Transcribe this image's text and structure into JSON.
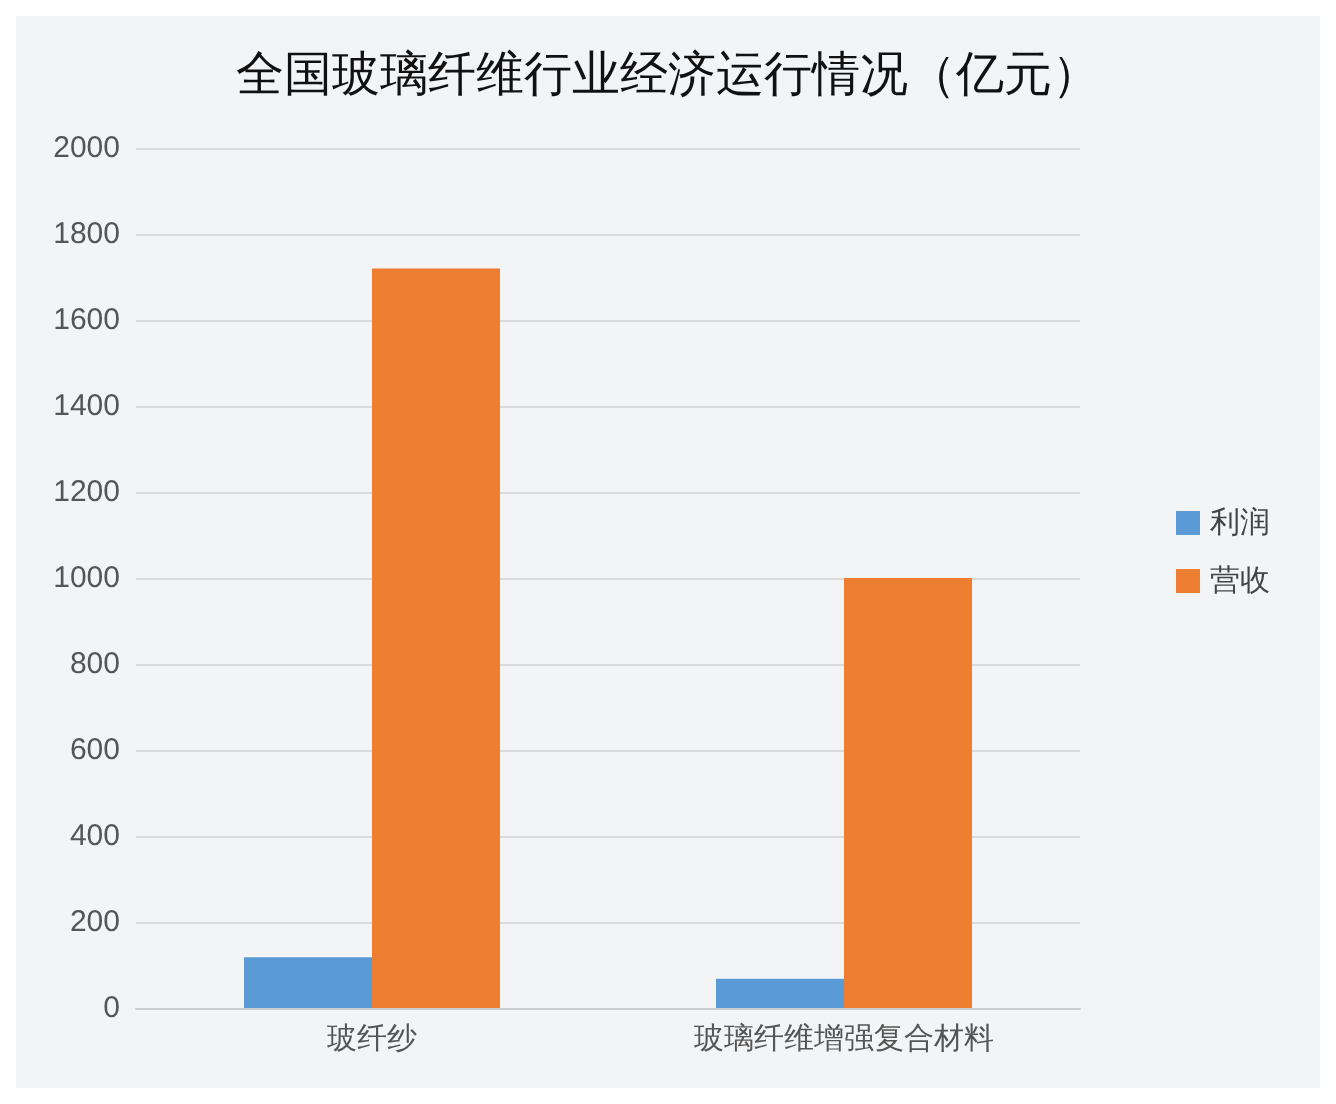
{
  "chart_data": {
    "type": "bar",
    "title": "全国玻璃纤维行业经济运行情况（亿元）",
    "categories": [
      "玻纤纱",
      "玻璃纤维增强复合材料"
    ],
    "series": [
      {
        "name": "利润",
        "color": "#5b9bd5",
        "values": [
          118,
          68
        ]
      },
      {
        "name": "营收",
        "color": "#ed7d31",
        "values": [
          1720,
          1000
        ]
      }
    ],
    "ylim": [
      0,
      2000
    ],
    "yticks": [
      0,
      200,
      400,
      600,
      800,
      1000,
      1200,
      1400,
      1600,
      1800,
      2000
    ],
    "grid": "y",
    "legend": "right"
  }
}
